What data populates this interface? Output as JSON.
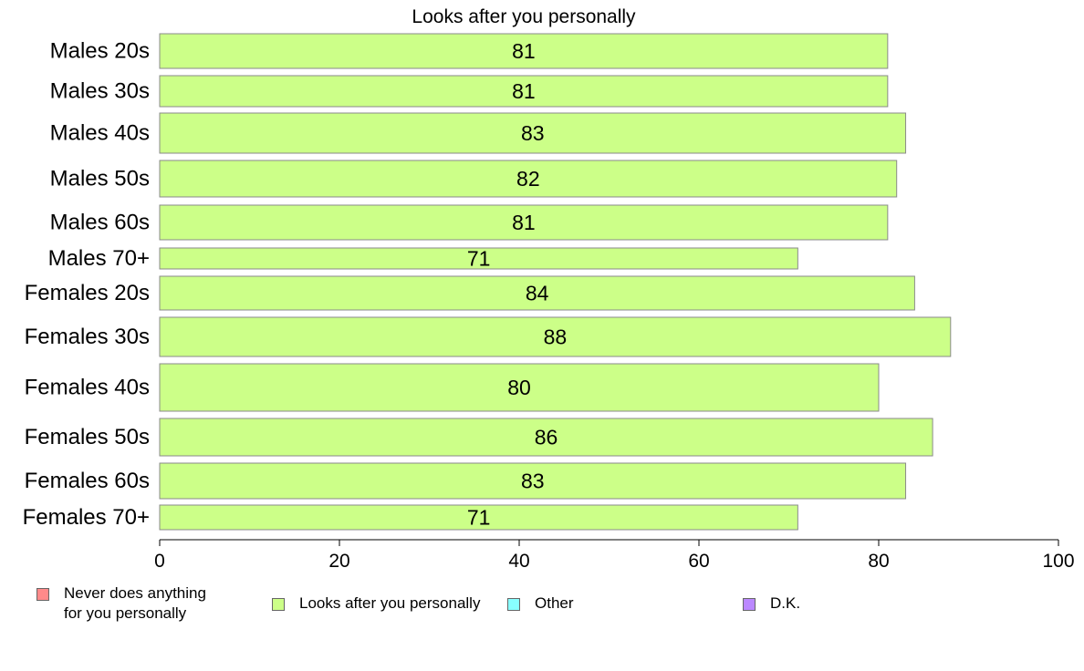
{
  "chart_data": {
    "type": "bar",
    "orientation": "horizontal",
    "title": "Looks after you personally",
    "categories": [
      "Males 20s",
      "Males 30s",
      "Males 40s",
      "Males 50s",
      "Males 60s",
      "Males 70+",
      "Females 20s",
      "Females 30s",
      "Females 40s",
      "Females 50s",
      "Females 60s",
      "Females 70+"
    ],
    "values": [
      81,
      81,
      83,
      82,
      81,
      71,
      84,
      88,
      80,
      86,
      83,
      71
    ],
    "value_labels": [
      "81",
      "81",
      "83",
      "82",
      "81",
      "71",
      "84",
      "88",
      "80",
      "86",
      "83",
      "71"
    ],
    "xlim": [
      0,
      100
    ],
    "x_ticks": [
      0,
      20,
      40,
      60,
      80,
      100
    ],
    "x_tick_labels": [
      "0",
      "20",
      "40",
      "60",
      "80",
      "100"
    ],
    "bar_color": "#ccff88",
    "legend_position": "bottom",
    "legend": [
      {
        "name": "Never does anything\nfor you personally",
        "color": "#ff8a8a"
      },
      {
        "name": "Looks after you personally",
        "color": "#ccff88"
      },
      {
        "name": "Other",
        "color": "#88ffff"
      },
      {
        "name": "D.K.",
        "color": "#bb88ff"
      }
    ]
  }
}
